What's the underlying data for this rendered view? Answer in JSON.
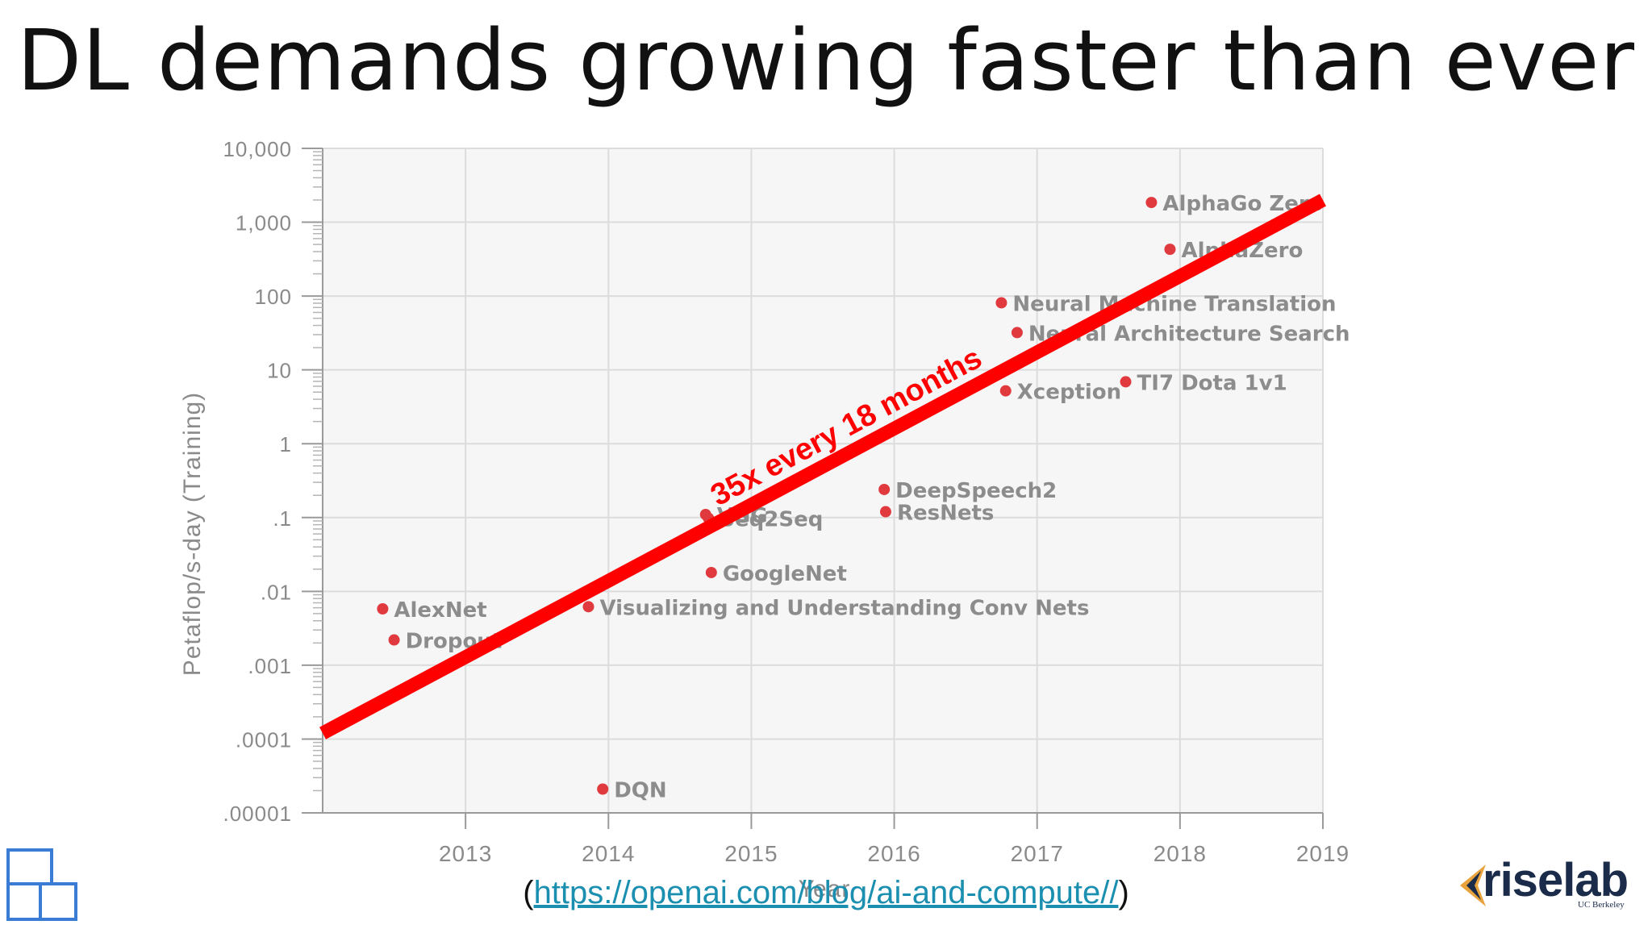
{
  "slide": {
    "title": "DL demands growing faster than ever",
    "source_open": "(",
    "source_link": "https://openai.com/blog/ai-and-compute//",
    "source_close": ")",
    "logo_text": "riselab",
    "logo_subtext": "UC Berkeley"
  },
  "chart_data": {
    "type": "scatter",
    "xlabel": "Year",
    "ylabel": "Petaflop/s-day (Training)",
    "xlim": [
      2012.0,
      2019.0
    ],
    "ylim": [
      1e-05,
      10000
    ],
    "y_scale": "log",
    "x_ticks": [
      "2013",
      "2014",
      "2015",
      "2016",
      "2017",
      "2018",
      "2019"
    ],
    "y_ticks": [
      {
        "value": 1e-05,
        "label": ".00001"
      },
      {
        "value": 0.0001,
        "label": ".0001"
      },
      {
        "value": 0.001,
        "label": ".001"
      },
      {
        "value": 0.01,
        "label": ".01"
      },
      {
        "value": 0.1,
        "label": ".1"
      },
      {
        "value": 1,
        "label": "1"
      },
      {
        "value": 10,
        "label": "10"
      },
      {
        "value": 100,
        "label": "100"
      },
      {
        "value": 1000,
        "label": "1,000"
      },
      {
        "value": 10000,
        "label": "10,000"
      }
    ],
    "grid": true,
    "point_color": "#e0393e",
    "points": [
      {
        "label": "AlexNet",
        "x": 2012.42,
        "y": 0.0058
      },
      {
        "label": "Dropout",
        "x": 2012.5,
        "y": 0.0022
      },
      {
        "label": "DQN",
        "x": 2013.96,
        "y": 2.1e-05
      },
      {
        "label": "Visualizing and Understanding Conv Nets",
        "x": 2013.86,
        "y": 0.0062
      },
      {
        "label": "GoogleNet",
        "x": 2014.72,
        "y": 0.018
      },
      {
        "label": "Seq2Seq",
        "x": 2014.7,
        "y": 0.098
      },
      {
        "label": "VGG",
        "x": 2014.68,
        "y": 0.11
      },
      {
        "label": "DeepSpeech2",
        "x": 2015.93,
        "y": 0.24
      },
      {
        "label": "ResNets",
        "x": 2015.94,
        "y": 0.12
      },
      {
        "label": "Xception",
        "x": 2016.78,
        "y": 5.2
      },
      {
        "label": "TI7 Dota 1v1",
        "x": 2017.62,
        "y": 6.9
      },
      {
        "label": "Neural Architecture Search",
        "x": 2016.86,
        "y": 32
      },
      {
        "label": "Neural Machine Translation",
        "x": 2016.75,
        "y": 81
      },
      {
        "label": "AlphaZero",
        "x": 2017.93,
        "y": 430
      },
      {
        "label": "AlphaGo Zero",
        "x": 2017.8,
        "y": 1850
      }
    ],
    "trend_line": {
      "label": "35x every 18 months",
      "color": "#ff0000",
      "x": [
        2012.0,
        2019.0
      ],
      "y": [
        0.00012,
        2000
      ]
    }
  }
}
